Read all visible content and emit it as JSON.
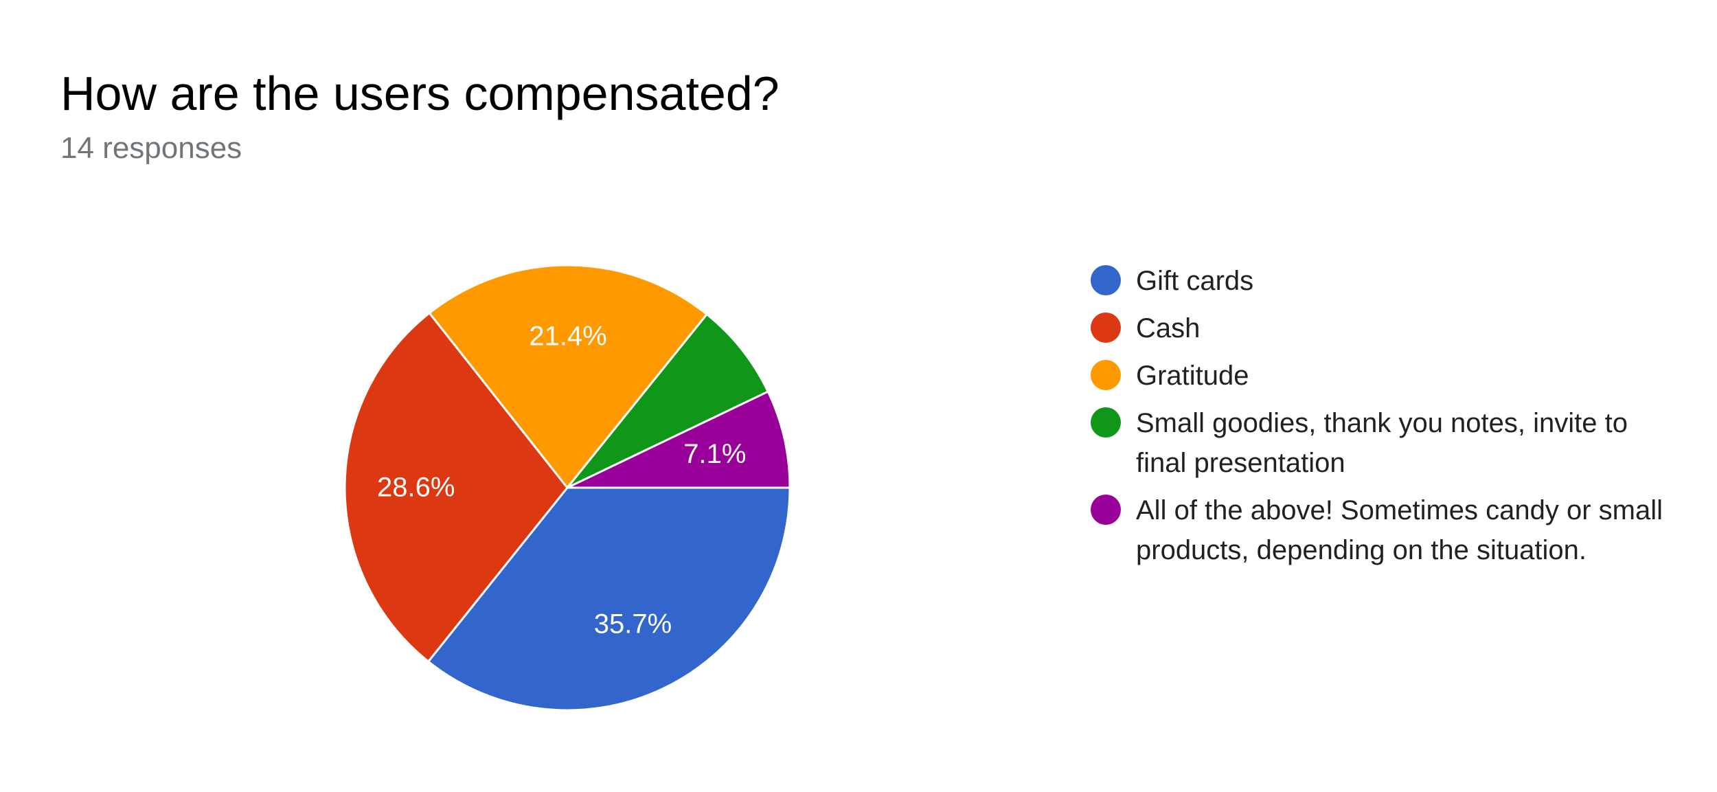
{
  "header": {
    "title": "How are the users compensated?",
    "subtitle": "14 responses"
  },
  "chart_data": {
    "type": "pie",
    "title": "How are the users compensated?",
    "subtitle": "14 responses",
    "legend_position": "right",
    "slices": [
      {
        "label": "Gift cards",
        "value": 35.7,
        "label_text": "35.7%",
        "color": "#3366cc"
      },
      {
        "label": "Cash",
        "value": 28.6,
        "label_text": "28.6%",
        "color": "#dc3912"
      },
      {
        "label": "Gratitude",
        "value": 21.4,
        "label_text": "21.4%",
        "color": "#ff9900"
      },
      {
        "label": "Small goodies, thank you notes, invite to final presentation",
        "value": 7.1,
        "label_text": "",
        "color": "#109618"
      },
      {
        "label": "All of the above! Sometimes candy or small products, depending on the situation.",
        "value": 7.1,
        "label_text": "7.1%",
        "color": "#990099"
      }
    ]
  }
}
